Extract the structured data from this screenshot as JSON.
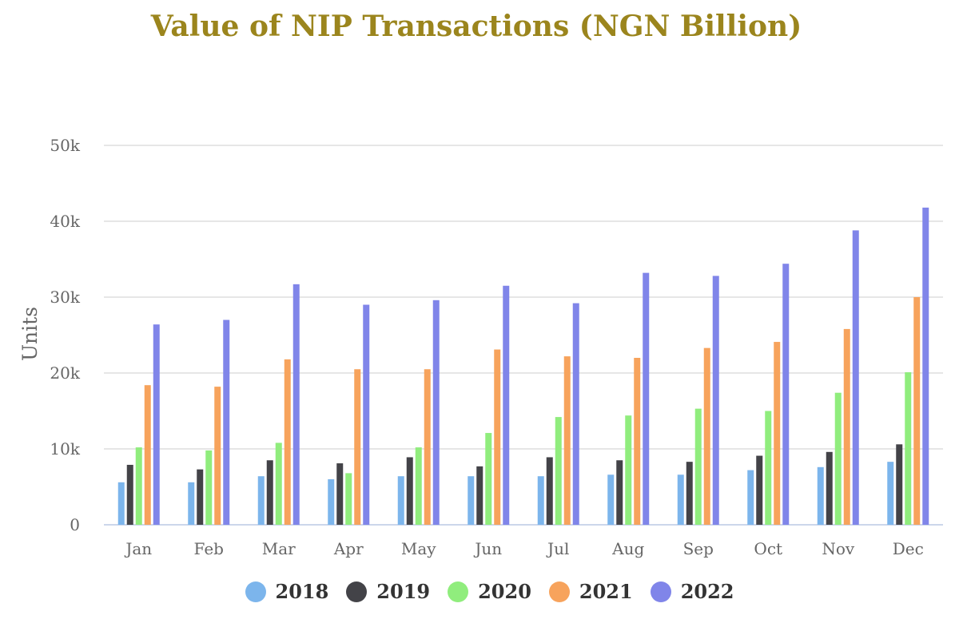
{
  "chart_data": {
    "type": "bar",
    "title": "Value of NIP Transactions (NGN Billion)",
    "xlabel": "",
    "ylabel": "Units",
    "ylim": [
      0,
      50000
    ],
    "y_ticks": [
      {
        "value": 0,
        "label": "0"
      },
      {
        "value": 10000,
        "label": "10k"
      },
      {
        "value": 20000,
        "label": "20k"
      },
      {
        "value": 30000,
        "label": "30k"
      },
      {
        "value": 40000,
        "label": "40k"
      },
      {
        "value": 50000,
        "label": "50k"
      }
    ],
    "grid": true,
    "legend_position": "bottom",
    "categories": [
      "Jan",
      "Feb",
      "Mar",
      "Apr",
      "May",
      "Jun",
      "Jul",
      "Aug",
      "Sep",
      "Oct",
      "Nov",
      "Dec"
    ],
    "series": [
      {
        "name": "2018",
        "color": "#7cb5ec",
        "values": [
          5600,
          5600,
          6400,
          6000,
          6400,
          6400,
          6400,
          6600,
          6600,
          7200,
          7600,
          8300
        ]
      },
      {
        "name": "2019",
        "color": "#434348",
        "values": [
          7900,
          7300,
          8500,
          8100,
          8900,
          7700,
          8900,
          8500,
          8300,
          9100,
          9600,
          10600
        ]
      },
      {
        "name": "2020",
        "color": "#90ed7d",
        "values": [
          10200,
          9800,
          10800,
          6800,
          10200,
          12100,
          14200,
          14400,
          15300,
          15000,
          17400,
          20100
        ]
      },
      {
        "name": "2021",
        "color": "#f7a35c",
        "values": [
          18400,
          18200,
          21800,
          20500,
          20500,
          23100,
          22200,
          22000,
          23300,
          24100,
          25800,
          30000
        ]
      },
      {
        "name": "2022",
        "color": "#8085e9",
        "values": [
          26400,
          27000,
          31700,
          29000,
          29600,
          31500,
          29200,
          33200,
          32800,
          34400,
          38800,
          41800
        ]
      }
    ]
  }
}
